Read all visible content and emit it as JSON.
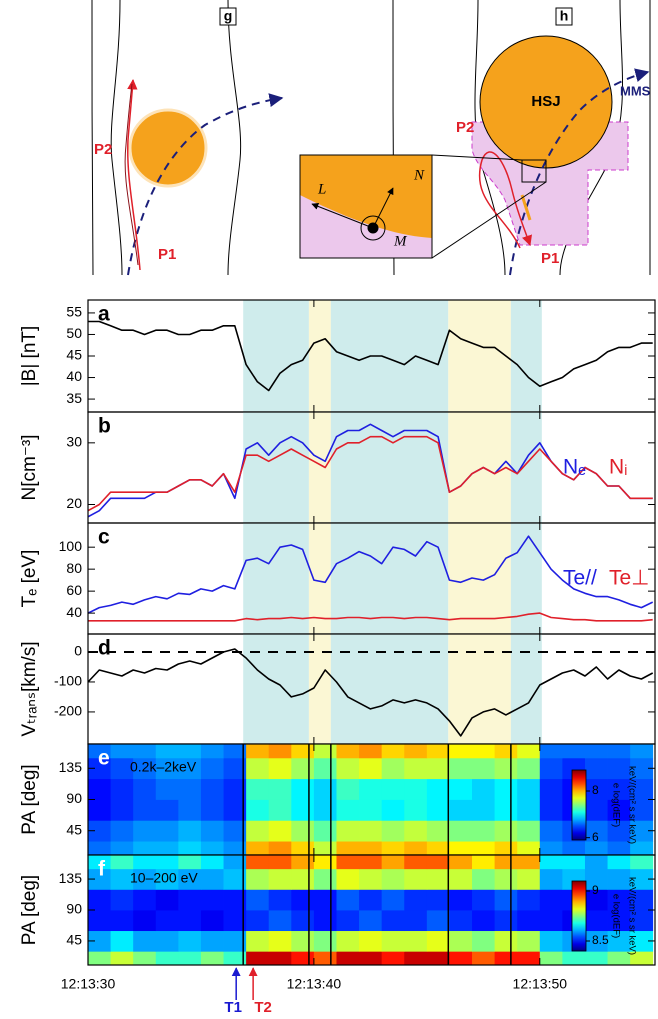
{
  "diagram": {
    "g": {
      "label": "g",
      "p2": "P2",
      "p1": "P1"
    },
    "h": {
      "label": "h",
      "hsj": "HSJ",
      "mms": "MMS",
      "p2": "P2",
      "p1": "P1",
      "inset_l": "L",
      "inset_n": "N",
      "inset_m": "M"
    }
  },
  "shaded_intervals": [
    {
      "x": [
        6.87,
        9.78
      ],
      "color": "#cfecec"
    },
    {
      "x": [
        9.78,
        10.75
      ],
      "color": "#fbf7d4"
    },
    {
      "x": [
        10.75,
        15.95
      ],
      "color": "#cfecec"
    },
    {
      "x": [
        15.95,
        18.72
      ],
      "color": "#fbf7d4"
    },
    {
      "x": [
        18.72,
        20.09
      ],
      "color": "#cfecec"
    }
  ],
  "time_markers": [
    {
      "label": "T1",
      "x": 6.56,
      "color": "#1a1ad0"
    },
    {
      "label": "T2",
      "x": 7.31,
      "color": "#e0202a"
    }
  ],
  "chart_data": [
    {
      "type": "line",
      "panel_label": "a",
      "ylabel": "|B| [nT]",
      "xlim": [
        0,
        25.1
      ],
      "ylim": [
        32,
        58
      ],
      "yticks": [
        35,
        40,
        45,
        50,
        55
      ],
      "color": "#000000",
      "x": [
        0,
        0.5,
        1,
        1.5,
        2,
        2.5,
        3,
        3.5,
        4,
        4.5,
        5,
        5.5,
        6,
        6.5,
        7,
        7.5,
        8,
        8.5,
        9,
        9.5,
        10,
        10.5,
        11,
        11.5,
        12,
        12.5,
        13,
        13.5,
        14,
        14.5,
        15,
        15.5,
        16,
        16.5,
        17,
        17.5,
        18,
        18.5,
        19,
        19.5,
        20,
        20.5,
        21,
        21.5,
        22,
        22.5,
        23,
        23.5,
        24,
        24.5,
        25
      ],
      "values": [
        53,
        53,
        52,
        51,
        51,
        50,
        51,
        51,
        50,
        50,
        51,
        51,
        52,
        52,
        43,
        39,
        37,
        41,
        43,
        44,
        48,
        49,
        46,
        45,
        44,
        45,
        45,
        44,
        43,
        45,
        44,
        43,
        51,
        49,
        48,
        47,
        47,
        45,
        43,
        40,
        38,
        39,
        40,
        42,
        43,
        44,
        46,
        47,
        47,
        48,
        48
      ]
    },
    {
      "type": "line",
      "panel_label": "b",
      "ylabel": "N[cm⁻³]",
      "xlim": [
        0,
        25.1
      ],
      "ylim": [
        17,
        35
      ],
      "yticks": [
        20,
        30
      ],
      "x": [
        0,
        0.5,
        1,
        1.5,
        2,
        2.5,
        3,
        3.5,
        4,
        4.5,
        5,
        5.5,
        6,
        6.5,
        7,
        7.5,
        8,
        8.5,
        9,
        9.5,
        10,
        10.5,
        11,
        11.5,
        12,
        12.5,
        13,
        13.5,
        14,
        14.5,
        15,
        15.5,
        16,
        16.5,
        17,
        17.5,
        18,
        18.5,
        19,
        19.5,
        20,
        20.5,
        21,
        21.5,
        22,
        22.5,
        23,
        23.5,
        24,
        24.5,
        25
      ],
      "series": [
        {
          "name": "Nₑ",
          "color": "#1f1fe0",
          "values": [
            18,
            19,
            21,
            21,
            21,
            21,
            22,
            22,
            23,
            24,
            24,
            23,
            25,
            21,
            29,
            30,
            28,
            30,
            31,
            30,
            28,
            27,
            31,
            32,
            32,
            33,
            32,
            31,
            32,
            32,
            32,
            31,
            22,
            23,
            25,
            26,
            25,
            27,
            25,
            28,
            30,
            27,
            25,
            24,
            26,
            25,
            23,
            23,
            21,
            21,
            21
          ]
        },
        {
          "name": "Nᵢ",
          "color": "#e0202a",
          "values": [
            19,
            20,
            22,
            22,
            22,
            22,
            22,
            22,
            23,
            24,
            24,
            23,
            25,
            22,
            28,
            28,
            27,
            28,
            29,
            28,
            27,
            26,
            29,
            30,
            30,
            31,
            31,
            30,
            31,
            31,
            31,
            30,
            22,
            23,
            25,
            26,
            25,
            26,
            25,
            27,
            29,
            27,
            25,
            24,
            26,
            25,
            23,
            23,
            21,
            21,
            21
          ]
        }
      ]
    },
    {
      "type": "line",
      "panel_label": "c",
      "ylabel": "Tₑ [eV]",
      "xlim": [
        0,
        25.1
      ],
      "ylim": [
        21,
        122
      ],
      "yticks": [
        40,
        60,
        80,
        100
      ],
      "x": [
        0,
        0.5,
        1,
        1.5,
        2,
        2.5,
        3,
        3.5,
        4,
        4.5,
        5,
        5.5,
        6,
        6.5,
        7,
        7.5,
        8,
        8.5,
        9,
        9.5,
        10,
        10.5,
        11,
        11.5,
        12,
        12.5,
        13,
        13.5,
        14,
        14.5,
        15,
        15.5,
        16,
        16.5,
        17,
        17.5,
        18,
        18.5,
        19,
        19.5,
        20,
        20.5,
        21,
        21.5,
        22,
        22.5,
        23,
        23.5,
        24,
        24.5,
        25
      ],
      "series": [
        {
          "name": "Te//",
          "color": "#1f1fe0",
          "values": [
            40,
            45,
            47,
            50,
            48,
            52,
            55,
            53,
            58,
            57,
            62,
            60,
            65,
            62,
            88,
            90,
            85,
            100,
            102,
            98,
            70,
            68,
            85,
            90,
            96,
            92,
            85,
            100,
            98,
            92,
            105,
            100,
            70,
            68,
            72,
            70,
            75,
            90,
            95,
            110,
            95,
            80,
            70,
            62,
            58,
            55,
            55,
            52,
            48,
            45,
            50
          ]
        },
        {
          "name": "Te⊥",
          "color": "#e0202a",
          "values": [
            33,
            33,
            33,
            33,
            33,
            33,
            33,
            33,
            33,
            33,
            33,
            33,
            33,
            33,
            35,
            34,
            35,
            35,
            36,
            35,
            36,
            35,
            35,
            36,
            36,
            35,
            36,
            36,
            35,
            36,
            36,
            35,
            34,
            35,
            35,
            35,
            35,
            36,
            37,
            39,
            40,
            36,
            35,
            34,
            34,
            33,
            33,
            33,
            33,
            33,
            34
          ]
        }
      ]
    },
    {
      "type": "line",
      "panel_label": "d",
      "ylabel": "Vₜᵣₐₙₛ[km/s]",
      "xlim": [
        0,
        25.1
      ],
      "ylim": [
        -307,
        60
      ],
      "yticks": [
        -200,
        -100,
        0
      ],
      "ref_line": 0,
      "color": "#000000",
      "x": [
        0,
        0.5,
        1,
        1.5,
        2,
        2.5,
        3,
        3.5,
        4,
        4.5,
        5,
        5.5,
        6,
        6.5,
        7,
        7.5,
        8,
        8.5,
        9,
        9.5,
        10,
        10.5,
        11,
        11.5,
        12,
        12.5,
        13,
        13.5,
        14,
        14.5,
        15,
        15.5,
        16,
        16.5,
        17,
        17.5,
        18,
        18.5,
        19,
        19.5,
        20,
        20.5,
        21,
        21.5,
        22,
        22.5,
        23,
        23.5,
        24,
        24.5,
        25
      ],
      "values": [
        -100,
        -60,
        -70,
        -80,
        -60,
        -70,
        -55,
        -60,
        -40,
        -30,
        -40,
        -20,
        0,
        10,
        -20,
        -60,
        -90,
        -110,
        -150,
        -140,
        -120,
        -60,
        -100,
        -150,
        -170,
        -190,
        -180,
        -160,
        -170,
        -160,
        -170,
        -190,
        -230,
        -280,
        -220,
        -200,
        -190,
        -210,
        -190,
        -170,
        -110,
        -90,
        -70,
        -60,
        -80,
        -50,
        -90,
        -60,
        -80,
        -90,
        -70
      ]
    },
    {
      "type": "heatmap",
      "panel_label": "e",
      "ylabel": "PA [deg]",
      "annotation": "0.2k–2keV",
      "colormap": "jet",
      "colorbar_label": "e log(dEF)",
      "colorbar_unit": "keV/(cm² s sr keV)",
      "xlim": [
        0,
        25.1
      ],
      "ylim": [
        10,
        170
      ],
      "yticks": [
        45,
        90,
        135
      ],
      "clim": [
        5.9,
        8.9
      ],
      "cticks": [
        6,
        8
      ],
      "x_bins": [
        0,
        1,
        2,
        3,
        4,
        5,
        6,
        7,
        8,
        9,
        10,
        11,
        12,
        13,
        14,
        15,
        16,
        17,
        18,
        19,
        20,
        21,
        22,
        23,
        24,
        25
      ],
      "y_bins": [
        10,
        30,
        60,
        90,
        120,
        150,
        170
      ],
      "z": [
        [
          6.6,
          6.7,
          6.8,
          6.8,
          6.9,
          6.8,
          6.7,
          8.0,
          8.1,
          7.9,
          7.6,
          8.0,
          8.0,
          7.9,
          8.0,
          7.9,
          7.8,
          7.8,
          7.9,
          7.7,
          6.7,
          6.6,
          6.7,
          6.6,
          6.8
        ],
        [
          6.5,
          6.6,
          6.7,
          6.7,
          6.8,
          6.7,
          6.6,
          7.6,
          7.7,
          7.5,
          7.3,
          7.6,
          7.6,
          7.5,
          7.6,
          7.5,
          7.4,
          7.4,
          7.5,
          7.4,
          6.6,
          6.5,
          6.6,
          6.5,
          6.7
        ],
        [
          6.3,
          6.4,
          6.5,
          6.5,
          6.6,
          6.5,
          6.4,
          7.1,
          7.2,
          7.0,
          6.9,
          7.1,
          7.1,
          7.0,
          7.1,
          7.0,
          6.9,
          6.9,
          7.0,
          6.9,
          6.4,
          6.3,
          6.4,
          6.3,
          6.5
        ],
        [
          6.3,
          6.4,
          6.5,
          6.6,
          6.6,
          6.5,
          6.4,
          7.2,
          7.2,
          7.0,
          6.9,
          7.2,
          7.1,
          7.1,
          7.1,
          7.0,
          7.0,
          6.9,
          7.0,
          6.9,
          6.4,
          6.3,
          6.4,
          6.4,
          6.5
        ],
        [
          6.4,
          6.5,
          6.6,
          6.7,
          6.7,
          6.6,
          6.5,
          7.6,
          7.7,
          7.5,
          7.3,
          7.6,
          7.7,
          7.5,
          7.6,
          7.6,
          7.4,
          7.4,
          7.5,
          7.4,
          6.5,
          6.4,
          6.5,
          6.5,
          6.6
        ],
        [
          6.6,
          6.7,
          6.7,
          6.8,
          6.8,
          6.7,
          6.6,
          8.0,
          8.1,
          7.9,
          7.6,
          8.0,
          8.1,
          7.9,
          8.0,
          7.9,
          7.8,
          7.8,
          7.9,
          7.7,
          6.6,
          6.6,
          6.6,
          6.6,
          6.7
        ]
      ]
    },
    {
      "type": "heatmap",
      "panel_label": "f",
      "ylabel": "PA [deg]",
      "annotation": "10–200 eV",
      "colormap": "jet",
      "colorbar_label": "e log(dEF)",
      "colorbar_unit": "keV/(cm² s sr keV)",
      "xlim": [
        0,
        25.1
      ],
      "ylim": [
        10,
        170
      ],
      "yticks": [
        45,
        90,
        135
      ],
      "clim": [
        8.4,
        9.1
      ],
      "cticks": [
        8.5,
        9
      ],
      "xticks": [
        {
          "value": 0,
          "label": "12:13:30"
        },
        {
          "value": 10,
          "label": "12:13:40"
        },
        {
          "value": 20,
          "label": "12:13:50"
        }
      ],
      "x_bins": [
        0,
        1,
        2,
        3,
        4,
        5,
        6,
        7,
        8,
        9,
        10,
        11,
        12,
        13,
        14,
        15,
        16,
        17,
        18,
        19,
        20,
        21,
        22,
        23,
        24,
        25
      ],
      "y_bins": [
        10,
        30,
        60,
        90,
        120,
        150,
        170
      ],
      "z": [
        [
          8.75,
          8.8,
          8.75,
          8.7,
          8.7,
          8.75,
          8.7,
          9.05,
          9.05,
          9.0,
          8.95,
          9.05,
          9.05,
          9.0,
          9.05,
          9.05,
          9.0,
          8.95,
          9.0,
          9.0,
          8.75,
          8.7,
          8.7,
          8.75,
          8.8
        ],
        [
          8.6,
          8.65,
          8.6,
          8.6,
          8.62,
          8.6,
          8.6,
          8.8,
          8.82,
          8.78,
          8.75,
          8.8,
          8.82,
          8.8,
          8.8,
          8.82,
          8.78,
          8.75,
          8.8,
          8.78,
          8.62,
          8.6,
          8.6,
          8.62,
          8.65
        ],
        [
          8.5,
          8.5,
          8.48,
          8.5,
          8.5,
          8.48,
          8.5,
          8.52,
          8.55,
          8.52,
          8.5,
          8.52,
          8.55,
          8.52,
          8.52,
          8.55,
          8.52,
          8.5,
          8.52,
          8.5,
          8.5,
          8.48,
          8.5,
          8.5,
          8.52
        ],
        [
          8.5,
          8.52,
          8.5,
          8.48,
          8.5,
          8.5,
          8.5,
          8.55,
          8.52,
          8.5,
          8.5,
          8.55,
          8.52,
          8.55,
          8.52,
          8.52,
          8.5,
          8.52,
          8.55,
          8.52,
          8.5,
          8.5,
          8.48,
          8.5,
          8.52
        ],
        [
          8.6,
          8.62,
          8.6,
          8.62,
          8.6,
          8.6,
          8.62,
          8.78,
          8.8,
          8.8,
          8.75,
          8.82,
          8.8,
          8.78,
          8.8,
          8.8,
          8.8,
          8.75,
          8.78,
          8.8,
          8.6,
          8.62,
          8.6,
          8.6,
          8.62
        ],
        [
          8.65,
          8.7,
          8.65,
          8.65,
          8.7,
          8.65,
          8.6,
          8.95,
          8.95,
          8.9,
          8.85,
          8.95,
          8.95,
          8.9,
          8.95,
          8.95,
          8.9,
          8.85,
          8.9,
          8.9,
          8.65,
          8.65,
          8.6,
          8.65,
          8.7
        ]
      ]
    }
  ]
}
